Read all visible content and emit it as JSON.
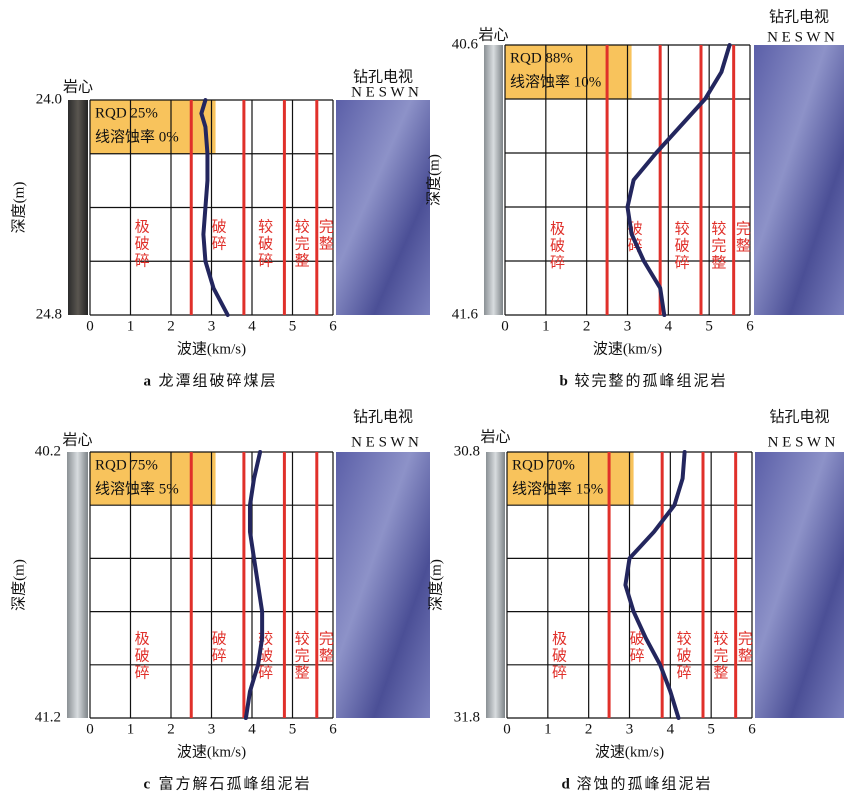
{
  "chart_data": [
    {
      "type": "line",
      "caption_letter": "a",
      "caption": "龙潭组破碎煤层",
      "core_label": "岩心",
      "tv_label": "钻孔电视",
      "compass": "N E S W N",
      "ylabel": "深度(m)",
      "xlabel": "波速(km/s)",
      "rqd": "RQD 25%",
      "dissolution": "线溶蚀率 0%",
      "xlim": [
        0,
        6
      ],
      "xticks": [
        0,
        1,
        2,
        3,
        4,
        5,
        6
      ],
      "ylim": [
        24.0,
        24.8
      ],
      "yticks": [
        {
          "value": 24.0,
          "label": "24.0"
        },
        24.8
      ],
      "ygrid": [
        24.2,
        24.4,
        24.6
      ],
      "zone_bounds": [
        2.5,
        3.8,
        4.8,
        5.6
      ],
      "zone_color": "#e0302a",
      "zones": [
        "极破碎",
        "破碎",
        "较破碎",
        "较完整",
        "完整"
      ],
      "rqd_color": "#f8c35c",
      "depth": [
        24.0,
        24.05,
        24.1,
        24.2,
        24.3,
        24.4,
        24.5,
        24.6,
        24.7,
        24.8
      ],
      "series": [
        {
          "color": "#23265e",
          "values": [
            2.85,
            2.75,
            2.85,
            2.9,
            2.9,
            2.85,
            2.8,
            2.85,
            3.05,
            3.4
          ]
        }
      ]
    },
    {
      "type": "line",
      "caption_letter": "b",
      "caption": "较完整的孤峰组泥岩",
      "core_label": "岩心",
      "tv_label": "钻孔电视",
      "compass": "N E S W N",
      "ylabel": "深度(m)",
      "xlabel": "波速(km/s)",
      "rqd": "RQD 88%",
      "dissolution": "线溶蚀率 10%",
      "xlim": [
        0,
        6
      ],
      "xticks": [
        0,
        1,
        2,
        3,
        4,
        5,
        6
      ],
      "ylim": [
        40.6,
        41.6
      ],
      "yticks": [
        40.6,
        41.6
      ],
      "ygrid": [
        40.8,
        41.0,
        41.2,
        41.4
      ],
      "zone_bounds": [
        2.5,
        3.8,
        4.8,
        5.6
      ],
      "zone_color": "#e0302a",
      "zones": [
        "极破碎",
        "破碎",
        "较破碎",
        "较完整",
        "完整"
      ],
      "rqd_color": "#f8c35c",
      "depth": [
        40.6,
        40.7,
        40.8,
        40.9,
        41.0,
        41.1,
        41.2,
        41.3,
        41.4,
        41.5,
        41.6
      ],
      "series": [
        {
          "color": "#23265e",
          "values": [
            5.5,
            5.3,
            4.9,
            4.3,
            3.7,
            3.15,
            3.0,
            3.1,
            3.4,
            3.8,
            3.9
          ]
        }
      ]
    },
    {
      "type": "line",
      "caption_letter": "c",
      "caption": "富方解石孤峰组泥岩",
      "core_label": "岩心",
      "tv_label": "钻孔电视",
      "compass": "N E S W N",
      "ylabel": "深度(m)",
      "xlabel": "波速(km/s)",
      "rqd": "RQD 75%",
      "dissolution": "线溶蚀率 5%",
      "xlim": [
        0,
        6
      ],
      "xticks": [
        0,
        1,
        2,
        3,
        4,
        5,
        6
      ],
      "ylim": [
        40.2,
        41.2
      ],
      "yticks": [
        40.2,
        41.2
      ],
      "ygrid": [
        40.4,
        40.6,
        40.8,
        41.0
      ],
      "zone_bounds": [
        2.5,
        3.8,
        4.8,
        5.6
      ],
      "zone_color": "#e0302a",
      "zones": [
        "极破碎",
        "破碎",
        "较破碎",
        "较完整",
        "完整"
      ],
      "rqd_color": "#f8c35c",
      "depth": [
        40.2,
        40.3,
        40.4,
        40.5,
        40.6,
        40.7,
        40.8,
        40.9,
        41.0,
        41.1,
        41.2
      ],
      "series": [
        {
          "color": "#23265e",
          "values": [
            4.2,
            4.05,
            3.95,
            3.95,
            4.05,
            4.15,
            4.25,
            4.25,
            4.15,
            3.95,
            3.85
          ]
        }
      ]
    },
    {
      "type": "line",
      "caption_letter": "d",
      "caption": "溶蚀的孤峰组泥岩",
      "core_label": "岩心",
      "tv_label": "钻孔电视",
      "compass": "N E S W N",
      "ylabel": "深度(m)",
      "xlabel": "波速(km/s)",
      "rqd": "RQD 70%",
      "dissolution": "线溶蚀率 15%",
      "xlim": [
        0,
        6
      ],
      "xticks": [
        0,
        1,
        2,
        3,
        4,
        5,
        6
      ],
      "ylim": [
        30.8,
        31.8
      ],
      "yticks": [
        30.8,
        31.8
      ],
      "ygrid": [
        31.0,
        31.2,
        31.4,
        31.6
      ],
      "zone_bounds": [
        2.5,
        3.8,
        4.8,
        5.6
      ],
      "zone_color": "#e0302a",
      "zones": [
        "极破碎",
        "破碎",
        "较破碎",
        "较完整",
        "完整"
      ],
      "rqd_color": "#f8c35c",
      "depth": [
        30.8,
        30.9,
        31.0,
        31.1,
        31.2,
        31.3,
        31.4,
        31.5,
        31.6,
        31.7,
        31.8
      ],
      "series": [
        {
          "color": "#23265e",
          "values": [
            4.35,
            4.3,
            4.1,
            3.6,
            3.0,
            2.9,
            3.1,
            3.4,
            3.75,
            4.0,
            4.2
          ]
        }
      ]
    }
  ]
}
